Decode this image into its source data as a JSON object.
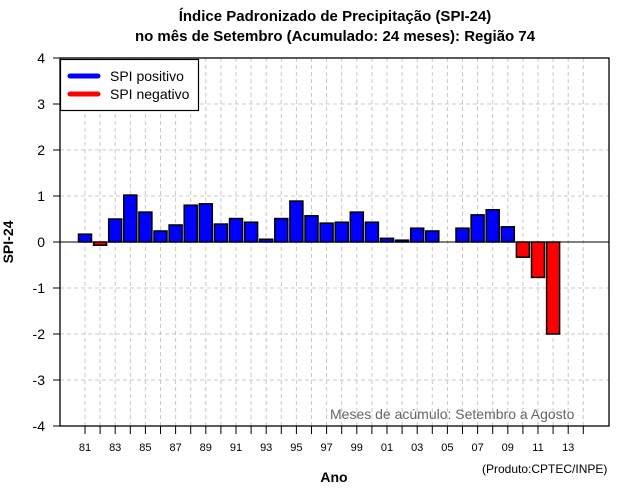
{
  "chart_data": {
    "type": "bar",
    "title": "Índice Padronizado de Precipitação (SPI-24)",
    "subtitle": "no mês de Setembro (Acumulado: 24 meses): Região 74",
    "xlabel": "Ano",
    "ylabel": "SPI-24",
    "ylim": [
      -4,
      4
    ],
    "yticks": [
      "4",
      "3",
      "2",
      "1",
      "0",
      "-1",
      "-2",
      "-3",
      "-4"
    ],
    "ytick_values": [
      4,
      3,
      2,
      1,
      0,
      -1,
      -2,
      -3,
      -4
    ],
    "xtick_labels": [
      "81",
      "83",
      "85",
      "87",
      "89",
      "91",
      "93",
      "95",
      "97",
      "99",
      "01",
      "03",
      "05",
      "07",
      "09",
      "11",
      "13"
    ],
    "grid": true,
    "legend_position": "top-left",
    "legend": [
      {
        "label": "SPI positivo",
        "color": "#0000ff"
      },
      {
        "label": "SPI negativo",
        "color": "#ff0000"
      }
    ],
    "categories": [
      "81",
      "82",
      "83",
      "84",
      "85",
      "86",
      "87",
      "88",
      "89",
      "90",
      "91",
      "92",
      "93",
      "94",
      "95",
      "96",
      "97",
      "98",
      "99",
      "00",
      "01",
      "02",
      "03",
      "04",
      "05",
      "06",
      "07",
      "08",
      "09",
      "10",
      "11",
      "12",
      "13",
      "14"
    ],
    "values": [
      0.17,
      -0.07,
      0.5,
      1.02,
      0.65,
      0.24,
      0.37,
      0.8,
      0.83,
      0.39,
      0.51,
      0.43,
      0.06,
      0.51,
      0.89,
      0.57,
      0.41,
      0.43,
      0.65,
      0.43,
      0.08,
      0.04,
      0.3,
      0.24,
      null,
      0.3,
      0.59,
      0.7,
      0.33,
      -0.33,
      -0.77,
      -2.0,
      null,
      null
    ],
    "colors": {
      "positive": "#0000ff",
      "negative": "#ff0000",
      "grid": "#c8c8c8",
      "note": "#666666"
    },
    "annotation": "Meses de acúmulo: Setembro a Agosto",
    "credit": "(Produto:CPTEC/INPE)"
  }
}
